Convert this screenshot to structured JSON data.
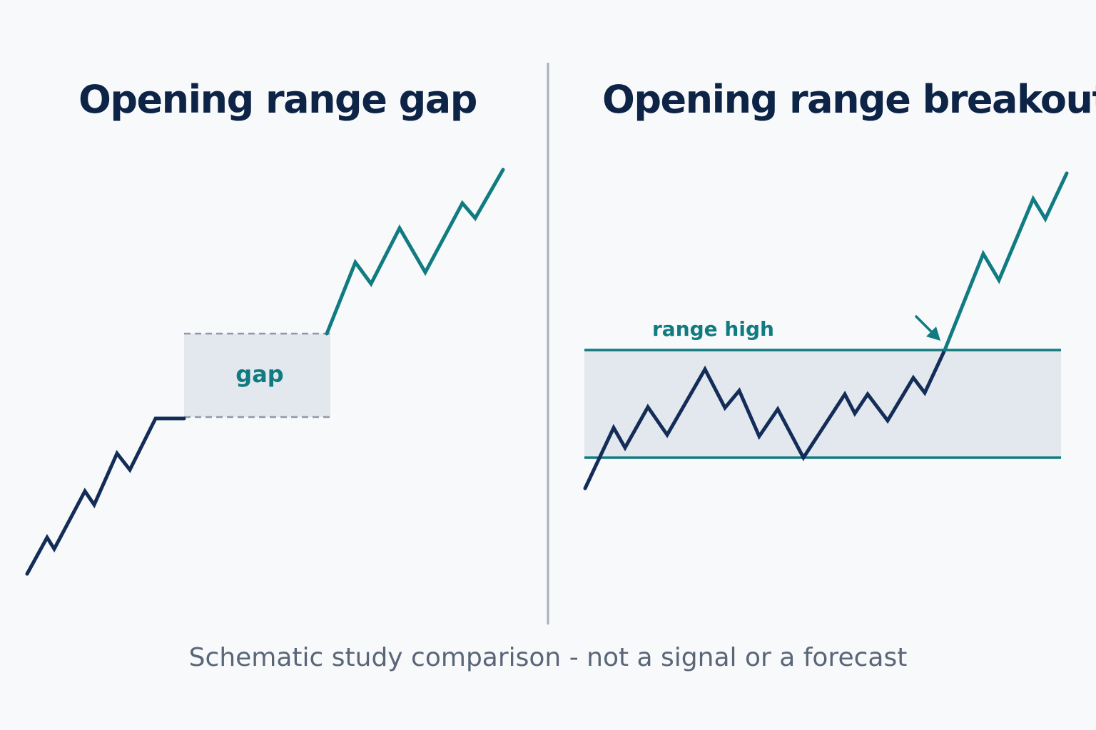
{
  "panels": {
    "left": {
      "title": "Opening range gap",
      "zone_label": "gap"
    },
    "right": {
      "title": "Opening range breakout",
      "zone_label": "range high"
    }
  },
  "caption": "Schematic study comparison - not a signal or a forecast",
  "colors": {
    "background": "#f8f9fb",
    "title": "#0d2447",
    "navy_line": "#132d58",
    "teal_line": "#107b80",
    "zone_fill": "#e3e8ef",
    "divider": "#a9b0bc",
    "caption": "#5a6678"
  },
  "icons": {
    "breakout_marker": "arrow-down-right-icon"
  }
}
